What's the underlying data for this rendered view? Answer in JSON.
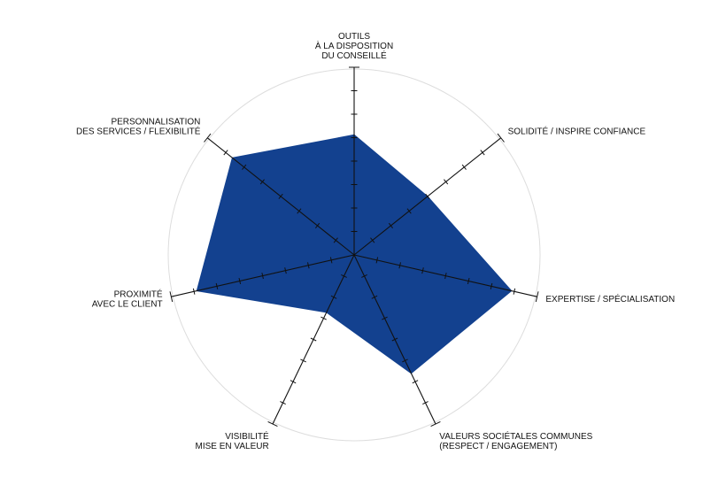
{
  "chart_data": {
    "type": "radar",
    "title": "",
    "scale": {
      "min": 0,
      "max": 10,
      "ticks": 8
    },
    "grid": {
      "outer_circle": true
    },
    "colors": {
      "fill": "#13418f",
      "axis": "#111111",
      "grid": "#dddddd"
    },
    "axes": [
      {
        "lines": [
          "OUTILS",
          "À LA DISPOSITION",
          "DU CONSEILLÉ"
        ],
        "value": 6.4
      },
      {
        "lines": [
          "SOLIDITÉ / INSPIRE CONFIANCE"
        ],
        "value": 5.0
      },
      {
        "lines": [
          "EXPERTISE / SPÉCIALISATION"
        ],
        "value": 8.6
      },
      {
        "lines": [
          "VALEURS SOCIÉTALES COMMUNES",
          "(RESPECT / ENGAGEMENT)"
        ],
        "value": 7.0
      },
      {
        "lines": [
          "VISIBILITÉ",
          "MISE EN VALEUR"
        ],
        "value": 3.4
      },
      {
        "lines": [
          "PROXIMITÉ",
          "AVEC LE CLIENT"
        ],
        "value": 8.6
      },
      {
        "lines": [
          "PERSONNALISATION",
          "DES SERVICES / FLEXIBILITÉ"
        ],
        "value": 8.3
      }
    ]
  }
}
